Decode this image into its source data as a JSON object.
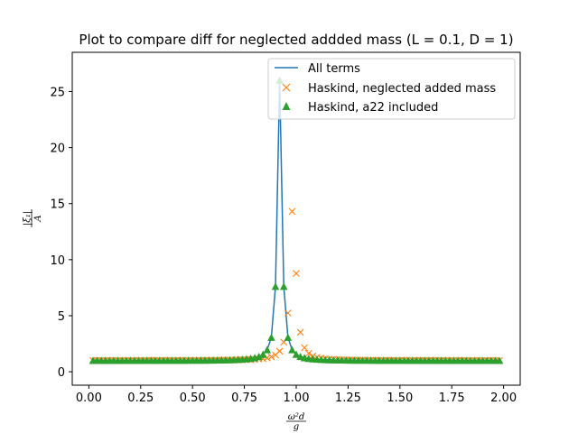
{
  "chart_data": {
    "type": "line",
    "title": "Plot to compare diff for neglected addded mass (L = 0.1, D = 1)",
    "xlabel": {
      "num": "ω²d",
      "den": "g"
    },
    "ylabel": {
      "num": "|ξ₁|",
      "den": "A"
    },
    "xlim": [
      -0.08,
      2.08
    ],
    "ylim": [
      -1.2,
      28.5
    ],
    "xticks": [
      0.0,
      0.25,
      0.5,
      0.75,
      1.0,
      1.25,
      1.5,
      1.75,
      2.0
    ],
    "xtick_labels": [
      "0.00",
      "0.25",
      "0.50",
      "0.75",
      "1.00",
      "1.25",
      "1.50",
      "1.75",
      "2.00"
    ],
    "yticks": [
      0,
      5,
      10,
      15,
      20,
      25
    ],
    "ytick_labels": [
      "0",
      "5",
      "10",
      "15",
      "20",
      "25"
    ],
    "legend_position": "top-right",
    "series": [
      {
        "name": "All terms",
        "style": "line",
        "color": "#1f77b4",
        "peak_x": 0.92,
        "peak_y": 26.0,
        "half_width": 0.012
      },
      {
        "name": "Haskind, neglected added mass",
        "style": "x-marker",
        "color": "#ff7f0e",
        "peak_x": 0.985,
        "peak_y": 15.6,
        "half_width": 0.016
      },
      {
        "name": "Haskind, a22 included",
        "style": "triangle-marker",
        "color": "#2ca02c",
        "peak_x": 0.92,
        "peak_y": 26.0,
        "half_width": 0.012
      }
    ],
    "x_sampling": {
      "start": 0.02,
      "stop": 1.98,
      "step": 0.02
    },
    "baseline": 1.0
  }
}
